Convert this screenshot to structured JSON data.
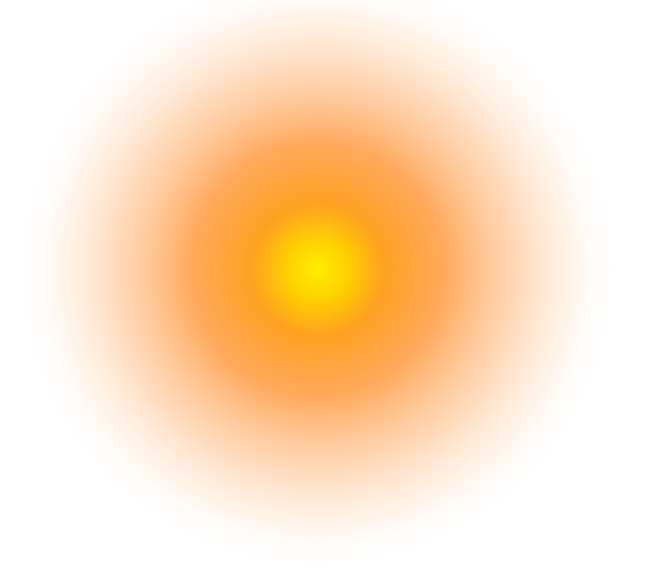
{
  "scene": {
    "description_label": "",
    "background_color": "#ffffff",
    "glow": {
      "core_color": "#ffee00",
      "inner_color": "#ffa020",
      "mid_color": "#ff9a40",
      "outer_color": "#ffd6b0",
      "edge_color": "#ffffff"
    }
  }
}
